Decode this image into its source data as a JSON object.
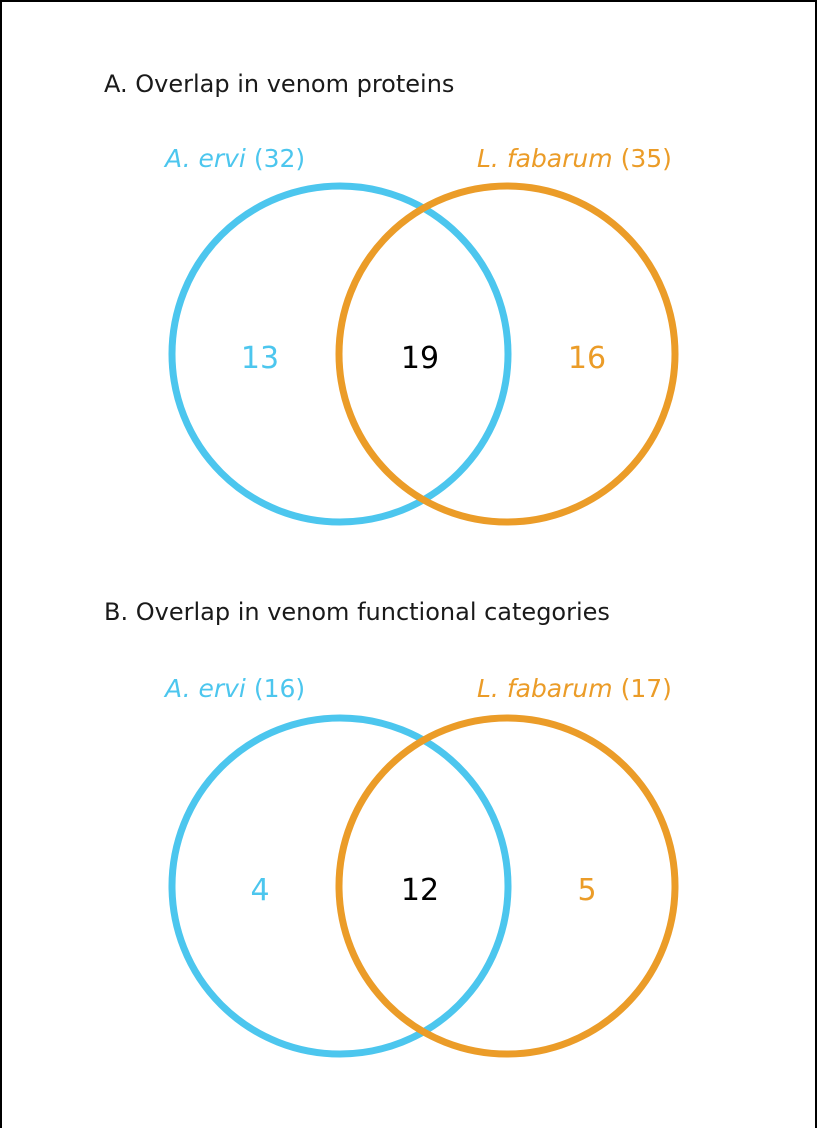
{
  "colors": {
    "a_ervi": "#4cc6ee",
    "l_fabarum": "#eb9c28",
    "shared": "#000000"
  },
  "panels": [
    {
      "title": "A. Overlap in venom proteins",
      "left_set": {
        "species": "A. ervi",
        "count_text": "(32)"
      },
      "right_set": {
        "species": "L. fabarum",
        "count_text": "(35)"
      },
      "left_only": "13",
      "shared": "19",
      "right_only": "16"
    },
    {
      "title": "B. Overlap in venom functional categories",
      "left_set": {
        "species": "A. ervi",
        "count_text": "(16)"
      },
      "right_set": {
        "species": "L. fabarum",
        "count_text": "(17)"
      },
      "left_only": "4",
      "shared": "12",
      "right_only": "5"
    }
  ]
}
